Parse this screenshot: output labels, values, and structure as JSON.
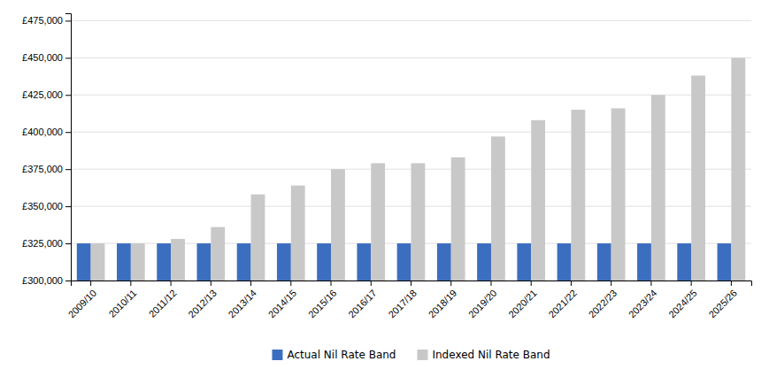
{
  "chart_data": {
    "type": "bar",
    "categories": [
      "2009/10",
      "2010/11",
      "2011/12",
      "2012/13",
      "2013/14",
      "2014/15",
      "2015/16",
      "2016/17",
      "2017/18",
      "2018/19",
      "2019/20",
      "2020/21",
      "2021/22",
      "2022/23",
      "2023/24",
      "2024/25",
      "2025/26"
    ],
    "series": [
      {
        "name": "Actual Nil Rate Band",
        "color": "#3c6ebf",
        "values": [
          325000,
          325000,
          325000,
          325000,
          325000,
          325000,
          325000,
          325000,
          325000,
          325000,
          325000,
          325000,
          325000,
          325000,
          325000,
          325000,
          325000
        ]
      },
      {
        "name": "Indexed Nil Rate Band",
        "color": "#c8c8c8",
        "values": [
          325000,
          325000,
          328000,
          336000,
          358000,
          364000,
          375000,
          379000,
          379000,
          383000,
          397000,
          408000,
          415000,
          416000,
          425000,
          438000,
          450000
        ]
      }
    ],
    "ylim": [
      300000,
      480000
    ],
    "yticks": [
      {
        "value": 300000,
        "label": "£300,000"
      },
      {
        "value": 325000,
        "label": "£325,000"
      },
      {
        "value": 350000,
        "label": "£350,000"
      },
      {
        "value": 375000,
        "label": "£375,000"
      },
      {
        "value": 400000,
        "label": "£400,000"
      },
      {
        "value": 425000,
        "label": "£425,000"
      },
      {
        "value": 450000,
        "label": "£450,000"
      },
      {
        "value": 475000,
        "label": "£475,000"
      }
    ],
    "grid": true,
    "legend": "bottom"
  }
}
